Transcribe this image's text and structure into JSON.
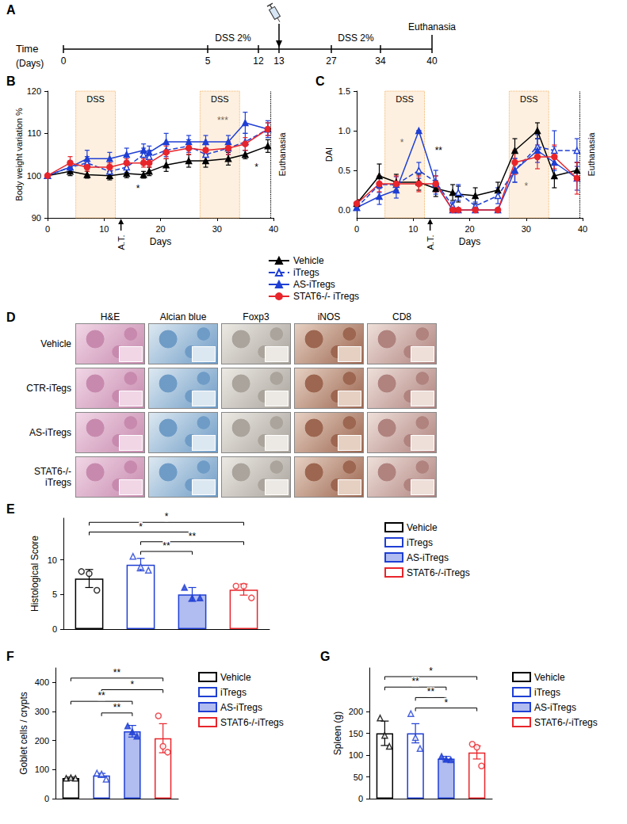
{
  "timeline": {
    "panel": "A",
    "axis_label": "Time",
    "unit": "(Days)",
    "days": [
      0,
      5,
      12,
      13,
      27,
      34,
      40
    ],
    "periods": [
      {
        "label": "DSS 2%",
        "from": 5,
        "to": 12
      },
      {
        "label": "DSS 2%",
        "from": 27,
        "to": 34
      }
    ],
    "injection_day": 13,
    "end_label": "Euthanasia",
    "end_day": 40
  },
  "chart_data": [
    {
      "panel": "B",
      "type": "line",
      "x_label": "Days",
      "y_label": "Body weight variation %",
      "x": [
        0,
        4,
        7,
        11,
        14,
        17,
        18,
        21,
        25,
        28,
        32,
        35,
        39
      ],
      "xlim": [
        0,
        40
      ],
      "xticks": [
        0,
        10,
        20,
        30,
        40
      ],
      "ylim": [
        90,
        120
      ],
      "yticks": [
        90,
        100,
        110,
        120
      ],
      "grid": false,
      "series": [
        {
          "name": "Vehicle",
          "color": "#000000",
          "marker": "triangle",
          "line_style": "solid",
          "values": [
            100,
            101,
            100.2,
            100,
            100.5,
            100.2,
            101,
            102.5,
            103.5,
            103.5,
            104,
            105,
            107
          ],
          "errors": [
            0.3,
            1,
            0.8,
            1,
            1,
            0.8,
            1,
            1.5,
            1.5,
            1.5,
            1.5,
            1,
            1.5
          ]
        },
        {
          "name": "iTregs",
          "color": "#1f3fd4",
          "marker": "triangle-open",
          "line_style": "dashed",
          "values": [
            100,
            102,
            103,
            101,
            102,
            105,
            104.5,
            106,
            107,
            105,
            106.5,
            108,
            111
          ],
          "errors": [
            0.3,
            1.2,
            1.5,
            1,
            1.2,
            1.5,
            1.5,
            1.5,
            1.5,
            1.5,
            1.5,
            2,
            1.5
          ]
        },
        {
          "name": "AS-iTregs",
          "color": "#1f3fd4",
          "marker": "triangle",
          "line_style": "solid",
          "values": [
            100,
            102,
            104,
            104,
            105,
            106,
            105.5,
            108,
            108,
            108,
            108,
            112.5,
            111
          ],
          "errors": [
            0.3,
            1.5,
            2,
            1.5,
            1.5,
            1.5,
            1.5,
            2,
            1.5,
            1.5,
            1.5,
            2.5,
            2
          ]
        },
        {
          "name": "STAT6-/- iTregs",
          "color": "#e8252b",
          "marker": "circle",
          "line_style": "solid",
          "values": [
            100,
            103,
            102,
            102,
            103,
            103,
            103,
            105.5,
            106.5,
            106,
            106.5,
            107.5,
            111
          ],
          "errors": [
            0.3,
            1.5,
            1,
            1,
            1,
            1,
            1,
            1.5,
            1.5,
            1.5,
            1.5,
            1.5,
            1.5
          ]
        }
      ],
      "shaded": [
        {
          "label": "DSS",
          "from": 5,
          "to": 12
        },
        {
          "label": "DSS",
          "from": 27,
          "to": 34
        }
      ],
      "vlines": [
        {
          "x": 39.5,
          "label": "Euthanasia"
        }
      ],
      "arrows": [
        {
          "text": "A.T.",
          "x": 13
        }
      ],
      "annotations": [
        {
          "text": "*",
          "x": 16,
          "y": 97
        },
        {
          "text": "***",
          "x": 31,
          "y": 113
        },
        {
          "text": "*",
          "x": 37,
          "y": 102
        }
      ]
    },
    {
      "panel": "C",
      "type": "line",
      "x_label": "Days",
      "y_label": "DAI",
      "x": [
        0,
        4,
        7,
        11,
        14,
        17,
        18,
        21,
        25,
        28,
        32,
        35,
        39
      ],
      "xlim": [
        0,
        40
      ],
      "xticks": [
        0,
        10,
        20,
        30,
        40
      ],
      "ylim": [
        -0.1,
        1.5
      ],
      "yticks": [
        {
          "value": 0,
          "label": "0.0"
        },
        0.5,
        {
          "value": 1,
          "label": "1.0"
        },
        1.5
      ],
      "grid": false,
      "legend": "bottom",
      "series": [
        {
          "name": "Vehicle",
          "color": "#000000",
          "marker": "triangle",
          "line_style": "solid",
          "values": [
            0.08,
            0.43,
            0.35,
            0.35,
            0.27,
            0.22,
            0.2,
            0.18,
            0.25,
            0.75,
            1.0,
            0.43,
            0.5
          ],
          "errors": [
            0.05,
            0.15,
            0.1,
            0.1,
            0.1,
            0.1,
            0.1,
            0.1,
            0.1,
            0.15,
            0.1,
            0.15,
            0.1
          ]
        },
        {
          "name": "iTregs",
          "color": "#1f3fd4",
          "marker": "triangle-open",
          "line_style": "dashed",
          "values": [
            0.03,
            0.32,
            0.32,
            0.5,
            0.35,
            0.05,
            0.22,
            0.05,
            0.18,
            0.5,
            0.8,
            0.75,
            0.75
          ],
          "errors": [
            0.03,
            0.1,
            0.1,
            0.1,
            0.15,
            0.05,
            0.1,
            0.05,
            0.1,
            0.15,
            0.15,
            0.25,
            0.15
          ]
        },
        {
          "name": "AS-iTregs",
          "color": "#1f3fd4",
          "marker": "triangle",
          "line_style": "solid",
          "values": [
            0.03,
            0.17,
            0.25,
            1.0,
            0.33,
            0,
            0,
            0,
            0,
            0.5,
            0.75,
            0.6,
            0.4
          ],
          "errors": [
            0.03,
            0.1,
            0.1,
            0,
            0.1,
            0,
            0,
            0,
            0,
            0.15,
            0.15,
            0.2,
            0.15
          ]
        },
        {
          "name": "STAT6-/- iTregs",
          "color": "#e8252b",
          "marker": "circle",
          "line_style": "solid",
          "values": [
            0.08,
            0.33,
            0.33,
            0.33,
            0.33,
            0,
            0,
            0,
            0,
            0.6,
            0.67,
            0.67,
            0.4
          ],
          "errors": [
            0.05,
            0.1,
            0.1,
            0.1,
            0.1,
            0,
            0,
            0,
            0,
            0.15,
            0.15,
            0.15,
            0.2
          ]
        }
      ],
      "shaded": [
        {
          "label": "DSS",
          "from": 5,
          "to": 12
        },
        {
          "label": "DSS",
          "from": 27,
          "to": 34
        }
      ],
      "vlines": [
        {
          "x": 39.5,
          "label": "Euthanasia"
        }
      ],
      "arrows": [
        {
          "text": "A.T.",
          "x": 13
        }
      ],
      "annotations": [
        {
          "text": "*",
          "x": 8,
          "y": 0.85
        },
        {
          "text": "**",
          "x": 14.5,
          "y": 0.75
        },
        {
          "text": "*",
          "x": 30,
          "y": 0.3
        }
      ]
    },
    {
      "panel": "E",
      "type": "bar",
      "y_label": "Histological Score",
      "ylim": [
        0,
        16
      ],
      "yticks": [
        0,
        5,
        10
      ],
      "tick_labels": "y",
      "legend": "right",
      "grid": false,
      "series": [
        {
          "name": "Vehicle",
          "color": "#000000",
          "marker": "circle-open",
          "values": [
            7.3
          ],
          "errors": [
            1.3
          ],
          "points": [
            [
              8.3,
              8.0,
              5.6
            ]
          ]
        },
        {
          "name": "iTregs",
          "color": "#1f3fd4",
          "marker": "triangle-open",
          "values": [
            9.3
          ],
          "errors": [
            0.9
          ],
          "points": [
            [
              10.5,
              9.0,
              8.5
            ]
          ]
        },
        {
          "name": "AS-iTregs",
          "color": "#1f3fd4",
          "marker": "triangle",
          "values": [
            5.0
          ],
          "errors": [
            1.0
          ],
          "points": [
            [
              6.0,
              4.5,
              4.5
            ]
          ]
        },
        {
          "name": "STAT6-/-iTregs",
          "color": "#e8252b",
          "marker": "circle-open",
          "values": [
            5.7
          ],
          "errors": [
            0.8
          ],
          "points": [
            [
              6.2,
              6.2,
              4.5
            ]
          ]
        }
      ],
      "comparisons": [
        {
          "from": "Vehicle",
          "to": "STAT6-/-iTregs",
          "label": "*",
          "y": 15.4
        },
        {
          "from": "Vehicle",
          "to": "AS-iTregs",
          "label": "*",
          "y": 14.0
        },
        {
          "from": "iTregs",
          "to": "STAT6-/-iTregs",
          "label": "**",
          "y": 12.6
        },
        {
          "from": "iTregs",
          "to": "AS-iTregs",
          "label": "**",
          "y": 11.2
        }
      ]
    },
    {
      "panel": "F",
      "type": "bar",
      "y_label": "Goblet cells / crypts",
      "ylim": [
        0,
        450
      ],
      "yticks": [
        0,
        100,
        200,
        300,
        400
      ],
      "tick_labels": "y",
      "legend": "right",
      "grid": false,
      "series": [
        {
          "name": "Vehicle",
          "color": "#000000",
          "marker": "triangle-open",
          "values": [
            71
          ],
          "errors": [
            3
          ],
          "points": [
            [
              70,
              72,
              70
            ]
          ]
        },
        {
          "name": "iTregs",
          "color": "#1f3fd4",
          "marker": "triangle-open",
          "values": [
            80
          ],
          "errors": [
            7
          ],
          "points": [
            [
              88,
              85,
              67
            ]
          ]
        },
        {
          "name": "AS-iTregs",
          "color": "#1f3fd4",
          "marker": "triangle",
          "values": [
            232
          ],
          "errors": [
            20
          ],
          "points": [
            [
              250,
              230,
              215
            ]
          ]
        },
        {
          "name": "STAT6-/-iTregs",
          "color": "#e8252b",
          "marker": "circle-open",
          "values": [
            208
          ],
          "errors": [
            50
          ],
          "points": [
            [
              285,
              180,
              160
            ]
          ]
        }
      ],
      "comparisons": [
        {
          "from": "Vehicle",
          "to": "STAT6-/-iTregs",
          "label": "**",
          "y": 415
        },
        {
          "from": "iTregs",
          "to": "STAT6-/-iTregs",
          "label": "*",
          "y": 375
        },
        {
          "from": "Vehicle",
          "to": "AS-iTregs",
          "label": "**",
          "y": 335
        },
        {
          "from": "iTregs",
          "to": "AS-iTregs",
          "label": "**",
          "y": 295
        }
      ]
    },
    {
      "panel": "G",
      "type": "bar",
      "y_label": "Spleen (g)",
      "ylim": [
        0,
        300
      ],
      "yticks": [
        0,
        50,
        100,
        150,
        200
      ],
      "tick_labels": "y",
      "legend": "right",
      "grid": false,
      "series": [
        {
          "name": "Vehicle",
          "color": "#000000",
          "marker": "triangle-open",
          "values": [
            150
          ],
          "errors": [
            28
          ],
          "points": [
            [
              185,
              145,
              120
            ]
          ]
        },
        {
          "name": "iTregs",
          "color": "#1f3fd4",
          "marker": "triangle-open",
          "values": [
            150
          ],
          "errors": [
            22
          ],
          "points": [
            [
              195,
              140,
              115
            ]
          ]
        },
        {
          "name": "AS-iTregs",
          "color": "#1f3fd4",
          "marker": "triangle",
          "values": [
            92
          ],
          "errors": [
            5
          ],
          "points": [
            [
              97,
              90,
              89
            ]
          ]
        },
        {
          "name": "STAT6-/-iTregs",
          "color": "#e8252b",
          "marker": "circle-open",
          "values": [
            106
          ],
          "errors": [
            15
          ],
          "points": [
            [
              125,
              118,
              75
            ]
          ]
        }
      ],
      "comparisons": [
        {
          "from": "Vehicle",
          "to": "STAT6-/-iTregs",
          "label": "*",
          "y": 280
        },
        {
          "from": "Vehicle",
          "to": "AS-iTregs",
          "label": "**",
          "y": 256
        },
        {
          "from": "iTregs",
          "to": "AS-iTregs",
          "label": "**",
          "y": 232
        },
        {
          "from": "iTregs",
          "to": "STAT6-/-iTregs",
          "label": "*",
          "y": 208
        }
      ]
    }
  ],
  "histology": {
    "panel": "D",
    "columns": [
      "H&E",
      "Alcian blue",
      "Foxp3",
      "iNOS",
      "CD8"
    ],
    "rows": [
      "Vehicle",
      "CTR-iTegs",
      "AS-iTregs",
      "STAT6-/- iTregs"
    ]
  }
}
